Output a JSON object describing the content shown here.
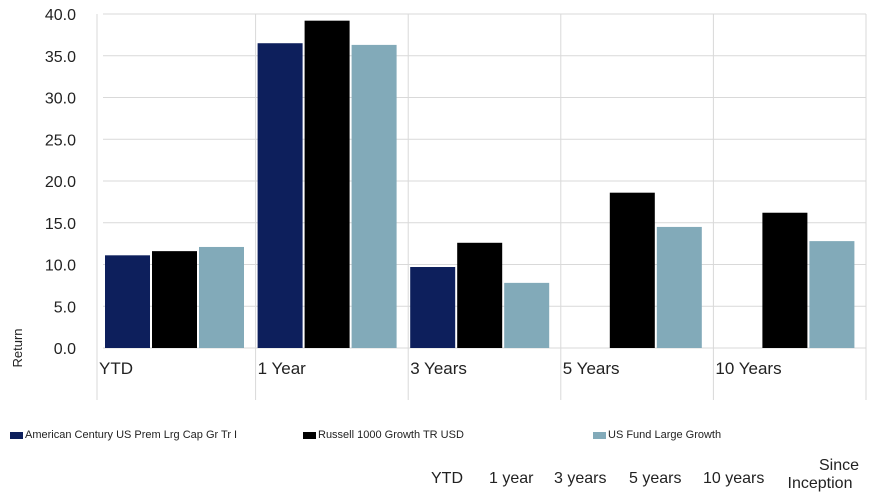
{
  "chart_data": {
    "type": "bar",
    "categories": [
      "YTD",
      "1 Year",
      "3 Years",
      "5 Years",
      "10 Years"
    ],
    "series": [
      {
        "name": "American Century US Prem Lrg Cap Gr Tr I",
        "color": "#0d1f5c",
        "values": [
          11.1,
          36.5,
          9.7,
          null,
          null
        ]
      },
      {
        "name": "Russell 1000 Growth TR USD",
        "color": "#000000",
        "values": [
          11.6,
          39.2,
          12.6,
          18.6,
          16.2
        ]
      },
      {
        "name": "US Fund Large Growth",
        "color": "#82aab9",
        "values": [
          12.1,
          36.3,
          7.8,
          14.5,
          12.8
        ]
      }
    ],
    "ylabel": "Return",
    "ylim": [
      0,
      40
    ],
    "yticks": [
      "0.0",
      "5.0",
      "10.0",
      "15.0",
      "20.0",
      "25.0",
      "30.0",
      "35.0",
      "40.0"
    ],
    "grid": true,
    "legend_position": "bottom"
  },
  "table_headers": {
    "ytd": "YTD",
    "one_year": "1 year",
    "three_years": "3 years",
    "five_years": "5 years",
    "ten_years": "10 years",
    "since_line1": "Since",
    "since_line2": "Inception"
  }
}
